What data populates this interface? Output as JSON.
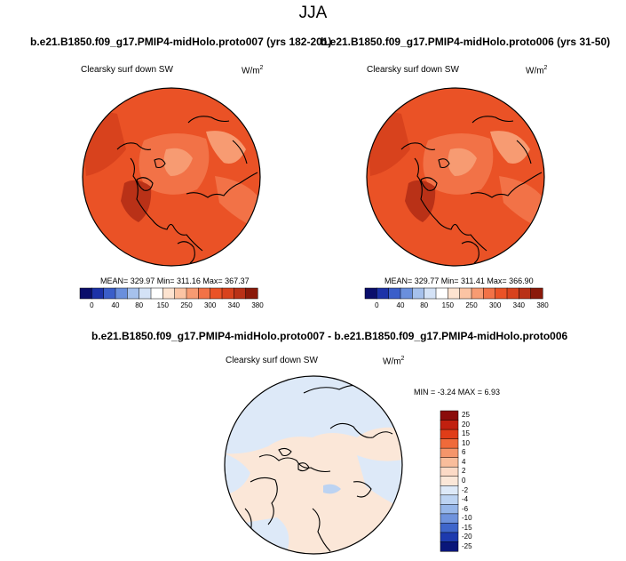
{
  "page_title": "JJA",
  "panels": [
    {
      "title": "b.e21.B1850.f09_g17.PMIP4-midHolo.proto007 (yrs 182-201)",
      "variable": "Clearsky surf down SW",
      "units_base": "W/m",
      "units_exp": "2",
      "stats": "MEAN= 329.97  Min= 311.16  Max= 367.37"
    },
    {
      "title": "b.e21.B1850.f09_g17.PMIP4-midHolo.proto006 (yrs 31-50)",
      "variable": "Clearsky surf down SW",
      "units_base": "W/m",
      "units_exp": "2",
      "stats": "MEAN= 329.77  Min= 311.41  Max= 366.90"
    },
    {
      "title": "b.e21.B1850.f09_g17.PMIP4-midHolo.proto007 - b.e21.B1850.f09_g17.PMIP4-midHolo.proto006",
      "variable": "Clearsky surf down SW",
      "units_base": "W/m",
      "units_exp": "2",
      "stats": "MIN =  -3.24 MAX =  6.93"
    }
  ],
  "chart_data": [
    {
      "type": "heatmap",
      "projection": "north-polar-stereographic",
      "title": "b.e21.B1850.f09_g17.PMIP4-midHolo.proto007 (yrs 182-201)",
      "variable": "Clearsky surf down SW",
      "units": "W/m2",
      "mean": 329.97,
      "min": 311.16,
      "max": 367.37,
      "colorbar_levels": [
        0,
        20,
        40,
        60,
        80,
        100,
        150,
        200,
        250,
        275,
        300,
        320,
        340,
        360,
        380
      ],
      "colorbar_tick_labels": [
        "0",
        "40",
        "80",
        "150",
        "250",
        "300",
        "340",
        "380"
      ],
      "colorbar_colors": [
        "#0a0e6b",
        "#1c32a8",
        "#3a5ec9",
        "#6a8fdc",
        "#a6c1ec",
        "#d4e2f6",
        "#ffffff",
        "#fde3d0",
        "#fbc4a4",
        "#f79b72",
        "#f27247",
        "#ea5226",
        "#d8421d",
        "#b93117",
        "#8a1a0a"
      ]
    },
    {
      "type": "heatmap",
      "projection": "north-polar-stereographic",
      "title": "b.e21.B1850.f09_g17.PMIP4-midHolo.proto006 (yrs 31-50)",
      "variable": "Clearsky surf down SW",
      "units": "W/m2",
      "mean": 329.77,
      "min": 311.41,
      "max": 366.9,
      "colorbar_levels": [
        0,
        20,
        40,
        60,
        80,
        100,
        150,
        200,
        250,
        275,
        300,
        320,
        340,
        360,
        380
      ],
      "colorbar_tick_labels": [
        "0",
        "40",
        "80",
        "150",
        "250",
        "300",
        "340",
        "380"
      ],
      "colorbar_colors": [
        "#0a0e6b",
        "#1c32a8",
        "#3a5ec9",
        "#6a8fdc",
        "#a6c1ec",
        "#d4e2f6",
        "#ffffff",
        "#fde3d0",
        "#fbc4a4",
        "#f79b72",
        "#f27247",
        "#ea5226",
        "#d8421d",
        "#b93117",
        "#8a1a0a"
      ]
    },
    {
      "type": "heatmap",
      "projection": "north-polar-stereographic",
      "title": "b.e21.B1850.f09_g17.PMIP4-midHolo.proto007 - b.e21.B1850.f09_g17.PMIP4-midHolo.proto006",
      "variable": "Clearsky surf down SW",
      "units": "W/m2",
      "min": -3.24,
      "max": 6.93,
      "colorbar_tick_labels": [
        "25",
        "20",
        "15",
        "10",
        "6",
        "4",
        "2",
        "0",
        "-2",
        "-4",
        "-6",
        "-10",
        "-15",
        "-20",
        "-25"
      ],
      "colorbar_colors": [
        "#8b0c0b",
        "#c1200f",
        "#e03d18",
        "#ef6a3a",
        "#f5956a",
        "#f9bd9b",
        "#fcdac6",
        "#fbe7d8",
        "#dde9f8",
        "#bcd3f2",
        "#96b6e9",
        "#6f93dd",
        "#3f66cb",
        "#1d3aae",
        "#0a167a"
      ]
    }
  ]
}
